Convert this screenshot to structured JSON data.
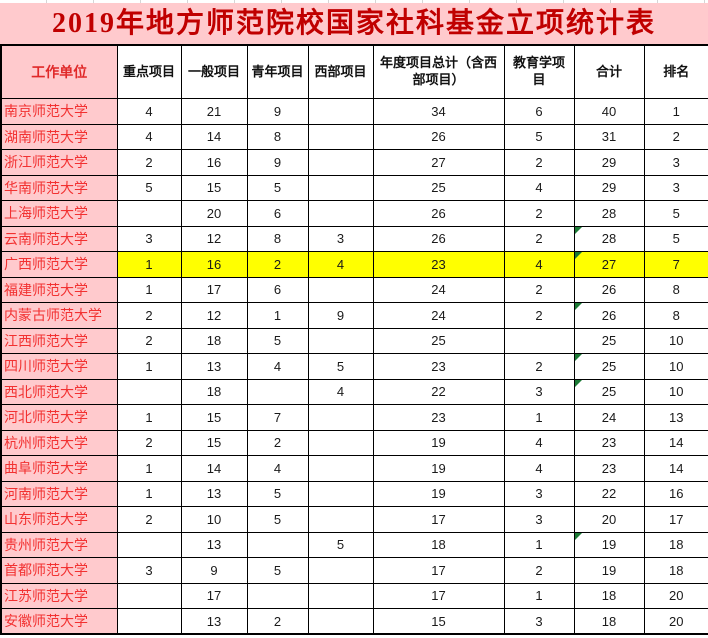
{
  "title": "2019年地方师范院校国家社科基金立项统计表",
  "colors": {
    "title_text": "#c00000",
    "band_pink": "#ffcacd",
    "unit_text_red": "#f23131",
    "highlight_yellow": "#ffff00",
    "error_indicator_green": "#1b7a35",
    "border_black": "#000000"
  },
  "table": {
    "headers": [
      "工作单位",
      "重点项目",
      "一般项目",
      "青年项目",
      "西部项目",
      "年度项目总计（含西部项目）",
      "教育学项目",
      "合计",
      "排名"
    ],
    "rows": [
      {
        "unit": "南京师范大学",
        "cells": [
          "4",
          "21",
          "9",
          "",
          "34",
          "6",
          "40",
          "1"
        ],
        "highlight": false,
        "flag_cell": -1
      },
      {
        "unit": "湖南师范大学",
        "cells": [
          "4",
          "14",
          "8",
          "",
          "26",
          "5",
          "31",
          "2"
        ],
        "highlight": false,
        "flag_cell": -1
      },
      {
        "unit": "浙江师范大学",
        "cells": [
          "2",
          "16",
          "9",
          "",
          "27",
          "2",
          "29",
          "3"
        ],
        "highlight": false,
        "flag_cell": -1
      },
      {
        "unit": "华南师范大学",
        "cells": [
          "5",
          "15",
          "5",
          "",
          "25",
          "4",
          "29",
          "3"
        ],
        "highlight": false,
        "flag_cell": -1
      },
      {
        "unit": "上海师范大学",
        "cells": [
          "",
          "20",
          "6",
          "",
          "26",
          "2",
          "28",
          "5"
        ],
        "highlight": false,
        "flag_cell": -1
      },
      {
        "unit": "云南师范大学",
        "cells": [
          "3",
          "12",
          "8",
          "3",
          "26",
          "2",
          "28",
          "5"
        ],
        "highlight": false,
        "flag_cell": 6
      },
      {
        "unit": "广西师范大学",
        "cells": [
          "1",
          "16",
          "2",
          "4",
          "23",
          "4",
          "27",
          "7"
        ],
        "highlight": true,
        "flag_cell": 6
      },
      {
        "unit": "福建师范大学",
        "cells": [
          "1",
          "17",
          "6",
          "",
          "24",
          "2",
          "26",
          "8"
        ],
        "highlight": false,
        "flag_cell": -1
      },
      {
        "unit": "内蒙古师范大学",
        "cells": [
          "2",
          "12",
          "1",
          "9",
          "24",
          "2",
          "26",
          "8"
        ],
        "highlight": false,
        "flag_cell": 6
      },
      {
        "unit": "江西师范大学",
        "cells": [
          "2",
          "18",
          "5",
          "",
          "25",
          "",
          "25",
          "10"
        ],
        "highlight": false,
        "flag_cell": -1
      },
      {
        "unit": "四川师范大学",
        "cells": [
          "1",
          "13",
          "4",
          "5",
          "23",
          "2",
          "25",
          "10"
        ],
        "highlight": false,
        "flag_cell": 6
      },
      {
        "unit": "西北师范大学",
        "cells": [
          "",
          "18",
          "",
          "4",
          "22",
          "3",
          "25",
          "10"
        ],
        "highlight": false,
        "flag_cell": 6
      },
      {
        "unit": "河北师范大学",
        "cells": [
          "1",
          "15",
          "7",
          "",
          "23",
          "1",
          "24",
          "13"
        ],
        "highlight": false,
        "flag_cell": -1
      },
      {
        "unit": "杭州师范大学",
        "cells": [
          "2",
          "15",
          "2",
          "",
          "19",
          "4",
          "23",
          "14"
        ],
        "highlight": false,
        "flag_cell": -1
      },
      {
        "unit": "曲阜师范大学",
        "cells": [
          "1",
          "14",
          "4",
          "",
          "19",
          "4",
          "23",
          "14"
        ],
        "highlight": false,
        "flag_cell": -1
      },
      {
        "unit": "河南师范大学",
        "cells": [
          "1",
          "13",
          "5",
          "",
          "19",
          "3",
          "22",
          "16"
        ],
        "highlight": false,
        "flag_cell": -1
      },
      {
        "unit": "山东师范大学",
        "cells": [
          "2",
          "10",
          "5",
          "",
          "17",
          "3",
          "20",
          "17"
        ],
        "highlight": false,
        "flag_cell": -1
      },
      {
        "unit": "贵州师范大学",
        "cells": [
          "",
          "13",
          "",
          "5",
          "18",
          "1",
          "19",
          "18"
        ],
        "highlight": false,
        "flag_cell": 6
      },
      {
        "unit": "首都师范大学",
        "cells": [
          "3",
          "9",
          "5",
          "",
          "17",
          "2",
          "19",
          "18"
        ],
        "highlight": false,
        "flag_cell": -1
      },
      {
        "unit": "江苏师范大学",
        "cells": [
          "",
          "17",
          "",
          "",
          "17",
          "1",
          "18",
          "20"
        ],
        "highlight": false,
        "flag_cell": -1
      },
      {
        "unit": "安徽师范大学",
        "cells": [
          "",
          "13",
          "2",
          "",
          "15",
          "3",
          "18",
          "20"
        ],
        "highlight": false,
        "flag_cell": -1
      }
    ]
  }
}
